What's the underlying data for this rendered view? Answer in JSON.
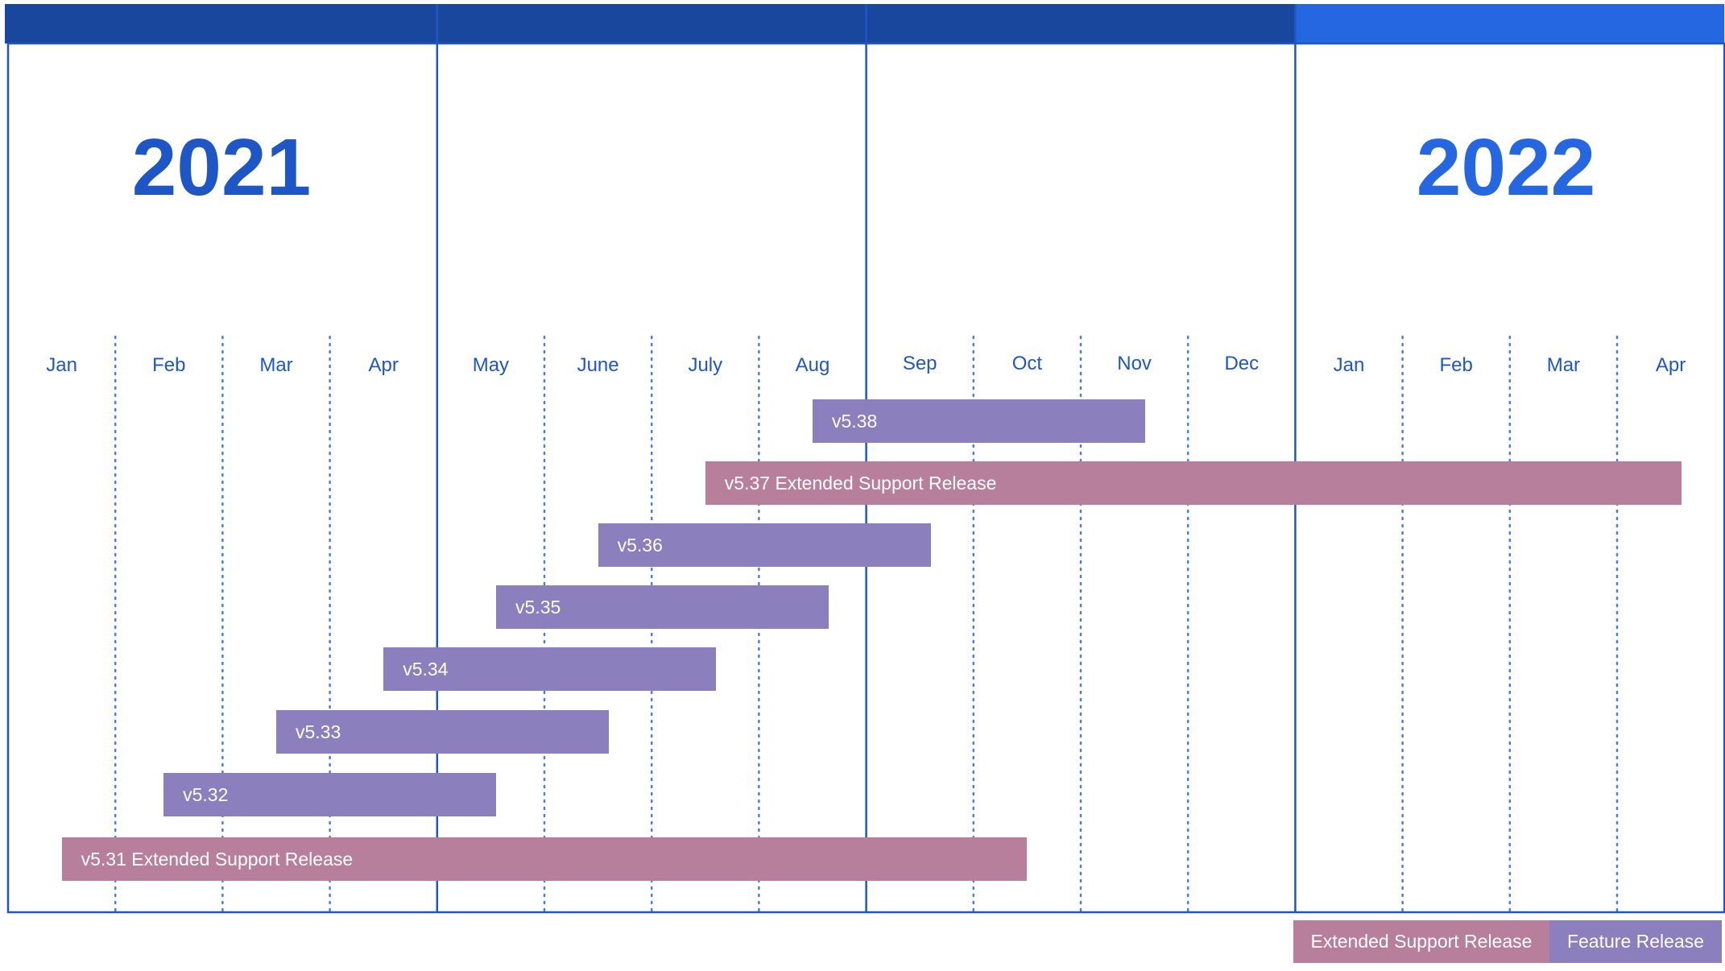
{
  "years": [
    {
      "label": "2021",
      "header_color": "#1a479e",
      "text_color": "#1f56c6"
    },
    {
      "label": "2022",
      "header_color": "#2467e0",
      "text_color": "#2467e0"
    }
  ],
  "months": [
    "Jan",
    "Feb",
    "Mar",
    "Apr",
    "May",
    "June",
    "July",
    "Aug",
    "Sep",
    "Oct",
    "Nov",
    "Dec",
    "Jan",
    "Feb",
    "Mar",
    "Apr"
  ],
  "chart_data": {
    "type": "gantt",
    "time_unit": "month index (0 = Jan 2021, 16 = end of Apr 2022)",
    "x_range": [
      0,
      16
    ],
    "tasks": [
      {
        "label": "v5.38",
        "start": 7.5,
        "end": 10.6,
        "kind": "Feature Release"
      },
      {
        "label": "v5.37 Extended Support Release",
        "start": 6.5,
        "end": 15.6,
        "kind": "Extended Support Release"
      },
      {
        "label": "v5.36",
        "start": 5.5,
        "end": 8.6,
        "kind": "Feature Release"
      },
      {
        "label": "v5.35",
        "start": 4.55,
        "end": 7.65,
        "kind": "Feature Release"
      },
      {
        "label": "v5.34",
        "start": 3.5,
        "end": 6.6,
        "kind": "Feature Release"
      },
      {
        "label": "v5.33",
        "start": 2.5,
        "end": 5.6,
        "kind": "Feature Release"
      },
      {
        "label": "v5.32",
        "start": 1.45,
        "end": 4.55,
        "kind": "Feature Release"
      },
      {
        "label": "v5.31 Extended Support Release",
        "start": 0.5,
        "end": 9.5,
        "kind": "Extended Support Release"
      }
    ]
  },
  "legend": [
    {
      "label": "Extended Support Release",
      "color": "#b87f9c"
    },
    {
      "label": "Feature Release",
      "color": "#8b7fbd"
    }
  ],
  "colors": {
    "frame": "#1f56c6",
    "month_divider": "#4a7fd6",
    "month_text": "#1f56c6"
  }
}
